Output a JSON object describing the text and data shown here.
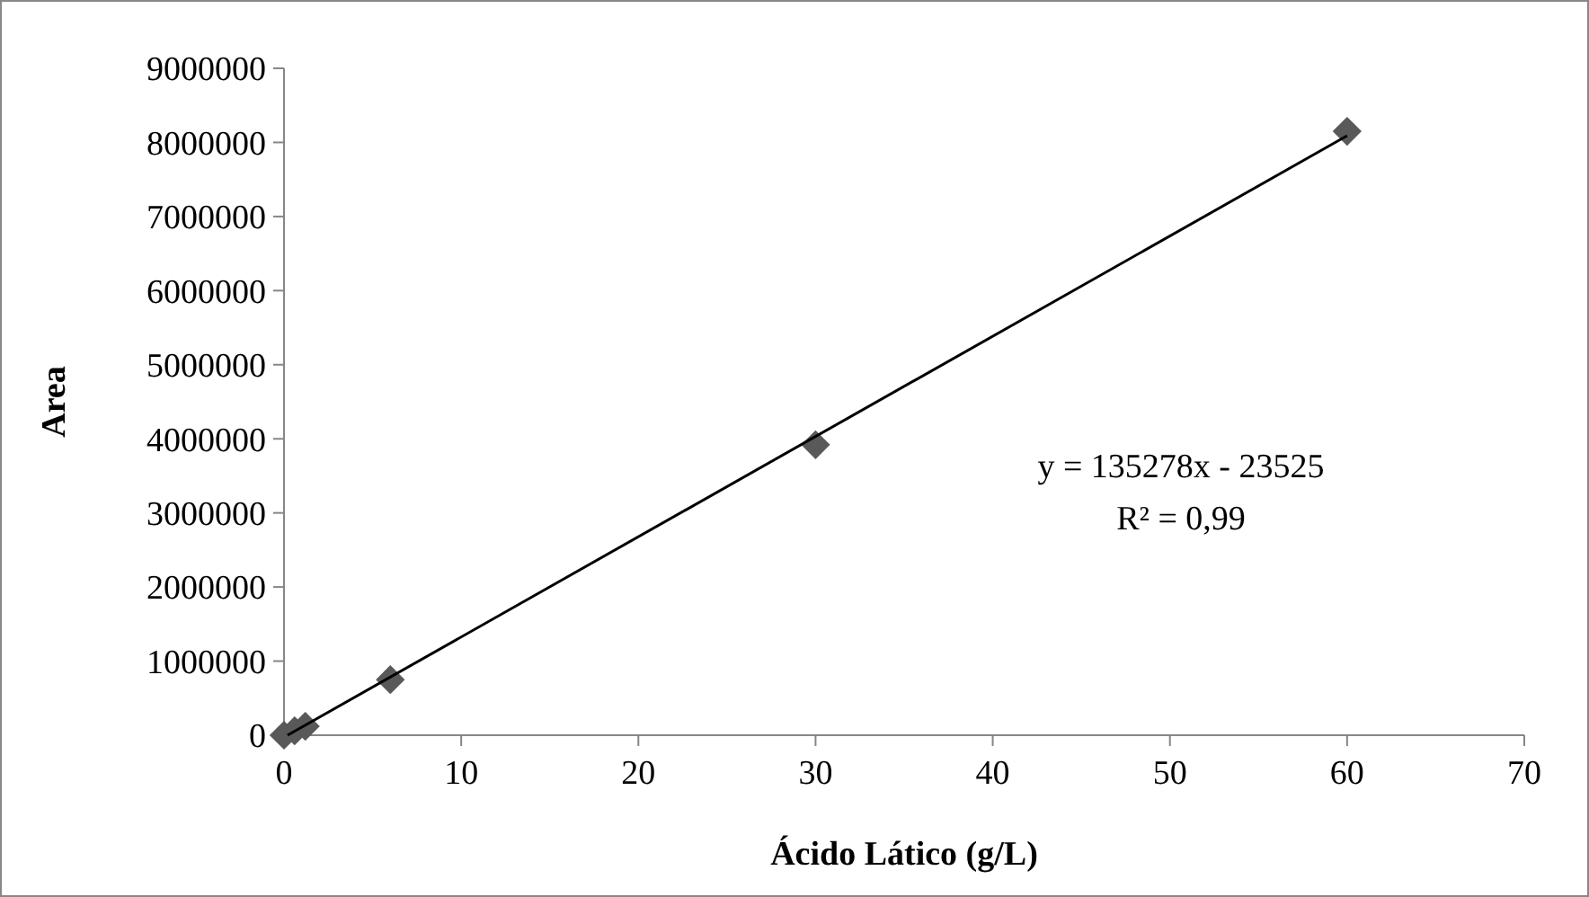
{
  "chart_data": {
    "type": "scatter",
    "xlabel": "Ácido Lático (g/L)",
    "ylabel": "Area",
    "xlim": [
      0,
      70
    ],
    "xticks": [
      0,
      10,
      20,
      30,
      40,
      50,
      60,
      70
    ],
    "ylim": [
      0,
      9000000
    ],
    "yticks": [
      0,
      1000000,
      2000000,
      3000000,
      4000000,
      5000000,
      6000000,
      7000000,
      8000000,
      9000000
    ],
    "grid": false,
    "series": [
      {
        "color": "#595959",
        "marker": "diamond",
        "x": [
          0,
          0.6,
          1.2,
          6,
          30,
          60
        ],
        "values": [
          0,
          60000,
          120000,
          750000,
          3920000,
          8150000
        ]
      },
      {
        "type": "line",
        "color": "#000000",
        "x": [
          0.2,
          60
        ],
        "values": [
          0,
          8090000
        ]
      }
    ],
    "annotations": [
      "y = 135278x - 23525",
      "R² = 0,99"
    ]
  }
}
